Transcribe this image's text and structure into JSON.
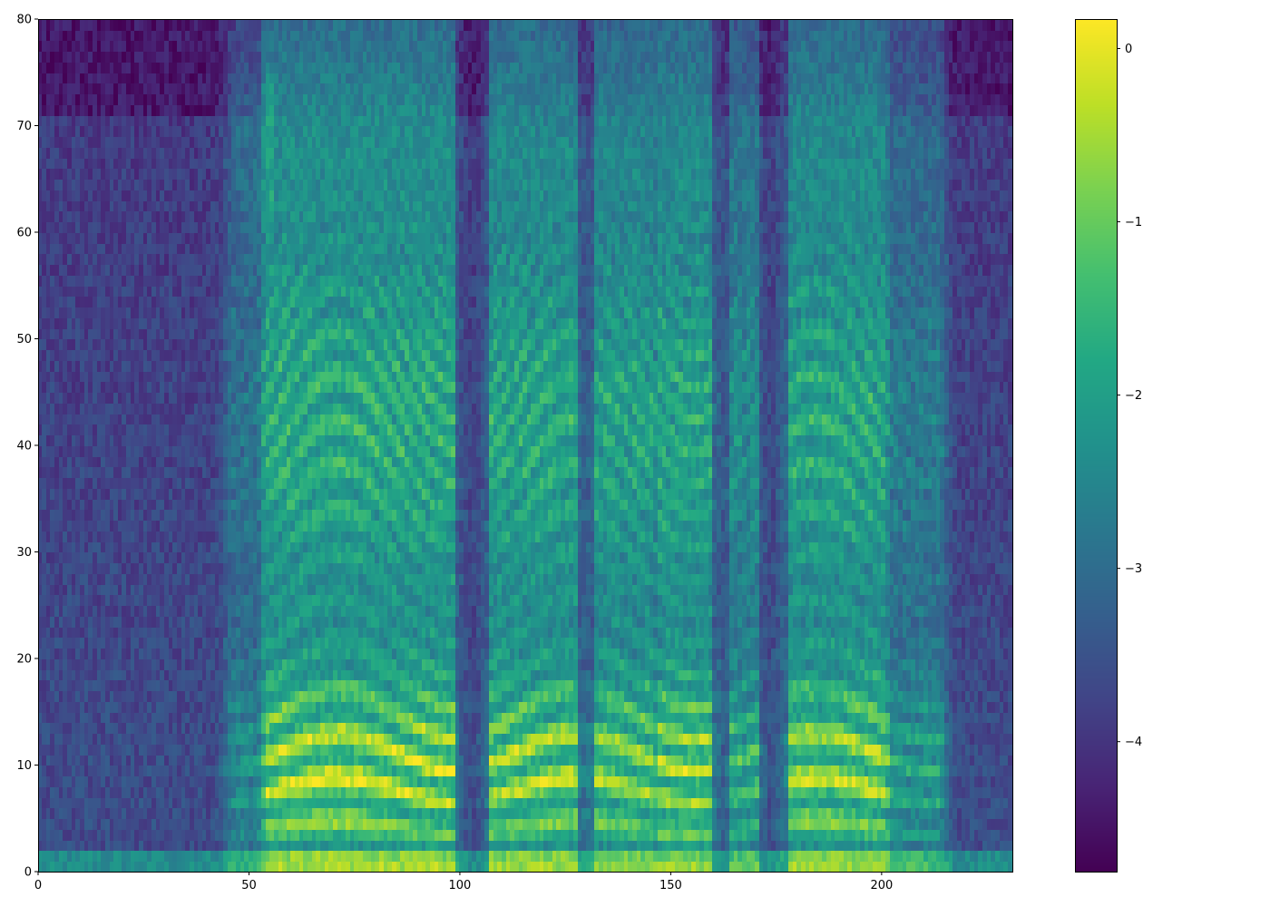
{
  "chart_data": {
    "type": "heatmap",
    "title": "",
    "xlabel": "",
    "ylabel": "",
    "colormap": "viridis",
    "xlim": [
      0,
      231
    ],
    "ylim": [
      0,
      80
    ],
    "x_ticks": [
      0,
      50,
      100,
      150,
      200
    ],
    "x_tick_labels": [
      "0",
      "50",
      "100",
      "150",
      "200"
    ],
    "y_ticks": [
      0,
      10,
      20,
      30,
      40,
      50,
      60,
      70,
      80
    ],
    "y_tick_labels": [
      "0",
      "10",
      "20",
      "30",
      "40",
      "50",
      "60",
      "70",
      "80"
    ],
    "n_frames": 231,
    "n_bins": 80,
    "color_range": [
      -4.75,
      0.17
    ],
    "colorbar": {
      "ticks": [
        0,
        -1,
        -2,
        -3,
        -4
      ],
      "tick_labels": [
        "0",
        "−1",
        "−2",
        "−3",
        "−4"
      ]
    },
    "description_segments": [
      {
        "x": [
          0,
          46
        ],
        "level": "low"
      },
      {
        "x": [
          46,
          54
        ],
        "level": "medium"
      },
      {
        "x": [
          54,
          98
        ],
        "level": "high"
      },
      {
        "x": [
          98,
          107
        ],
        "level": "low"
      },
      {
        "x": [
          107,
          130
        ],
        "level": "high"
      },
      {
        "x": [
          130,
          146
        ],
        "level": "high"
      },
      {
        "x": [
          146,
          160
        ],
        "level": "high"
      },
      {
        "x": [
          160,
          176
        ],
        "level": "medium"
      },
      {
        "x": [
          176,
          200
        ],
        "level": "high"
      },
      {
        "x": [
          200,
          215
        ],
        "level": "medium"
      },
      {
        "x": [
          215,
          231
        ],
        "level": "low"
      }
    ]
  }
}
